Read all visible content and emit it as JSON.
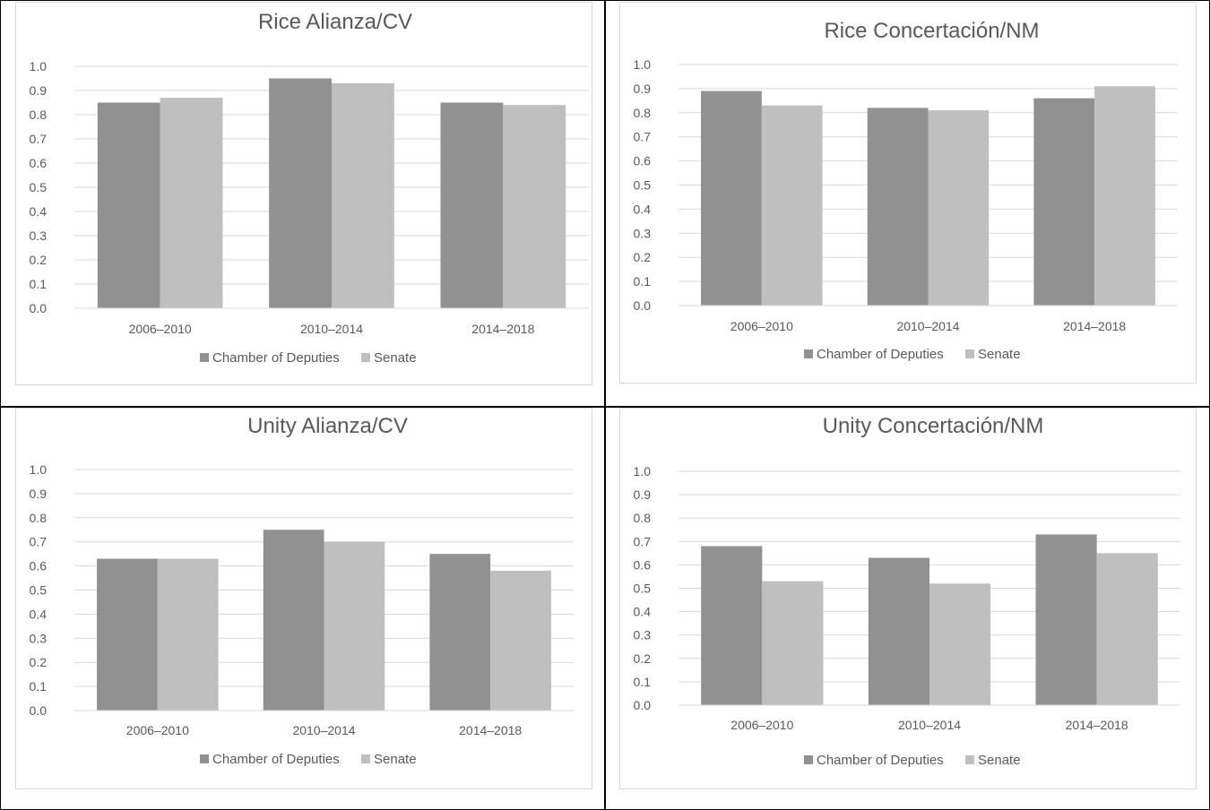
{
  "colors": {
    "chamber": "#919191",
    "senate": "#bfbfbf",
    "gridline": "#d9d9d9",
    "text": "#595959",
    "chart_border": "#d9d9d9",
    "panel_divider": "#000000"
  },
  "legend": {
    "items": [
      {
        "label": "Chamber of Deputies",
        "color": "#919191"
      },
      {
        "label": "Senate",
        "color": "#bfbfbf"
      }
    ]
  },
  "chart_data": [
    {
      "type": "bar",
      "title": "Rice Alianza/CV",
      "categories": [
        "2006–2010",
        "2010–2014",
        "2014–2018"
      ],
      "series": [
        {
          "name": "Chamber of Deputies",
          "values": [
            0.85,
            0.95,
            0.85
          ]
        },
        {
          "name": "Senate",
          "values": [
            0.87,
            0.93,
            0.84
          ]
        }
      ],
      "ylim": [
        0,
        1.0
      ],
      "yticks": [
        "0.0",
        "0.1",
        "0.2",
        "0.3",
        "0.4",
        "0.5",
        "0.6",
        "0.7",
        "0.8",
        "0.9",
        "1.0"
      ],
      "grid": true,
      "legend_position": "bottom"
    },
    {
      "type": "bar",
      "title": "Rice Concertación/NM",
      "categories": [
        "2006–2010",
        "2010–2014",
        "2014–2018"
      ],
      "series": [
        {
          "name": "Chamber of Deputies",
          "values": [
            0.89,
            0.82,
            0.86
          ]
        },
        {
          "name": "Senate",
          "values": [
            0.83,
            0.81,
            0.91
          ]
        }
      ],
      "ylim": [
        0,
        1.0
      ],
      "yticks": [
        "0.0",
        "0.1",
        "0.2",
        "0.3",
        "0.4",
        "0.5",
        "0.6",
        "0.7",
        "0.8",
        "0.9",
        "1.0"
      ],
      "grid": true,
      "legend_position": "bottom"
    },
    {
      "type": "bar",
      "title": "Unity Alianza/CV",
      "categories": [
        "2006–2010",
        "2010–2014",
        "2014–2018"
      ],
      "series": [
        {
          "name": "Chamber of Deputies",
          "values": [
            0.63,
            0.75,
            0.65
          ]
        },
        {
          "name": "Senate",
          "values": [
            0.63,
            0.7,
            0.58
          ]
        }
      ],
      "ylim": [
        0,
        1.0
      ],
      "yticks": [
        "0.0",
        "0.1",
        "0.2",
        "0.3",
        "0.4",
        "0.5",
        "0.6",
        "0.7",
        "0.8",
        "0.9",
        "1.0"
      ],
      "grid": true,
      "legend_position": "bottom"
    },
    {
      "type": "bar",
      "title": "Unity Concertación/NM",
      "categories": [
        "2006–2010",
        "2010–2014",
        "2014–2018"
      ],
      "series": [
        {
          "name": "Chamber of Deputies",
          "values": [
            0.68,
            0.63,
            0.73
          ]
        },
        {
          "name": "Senate",
          "values": [
            0.53,
            0.52,
            0.65
          ]
        }
      ],
      "ylim": [
        0,
        1.0
      ],
      "yticks": [
        "0.0",
        "0.1",
        "0.2",
        "0.3",
        "0.4",
        "0.5",
        "0.6",
        "0.7",
        "0.8",
        "0.9",
        "1.0"
      ],
      "grid": true,
      "legend_position": "bottom"
    }
  ]
}
